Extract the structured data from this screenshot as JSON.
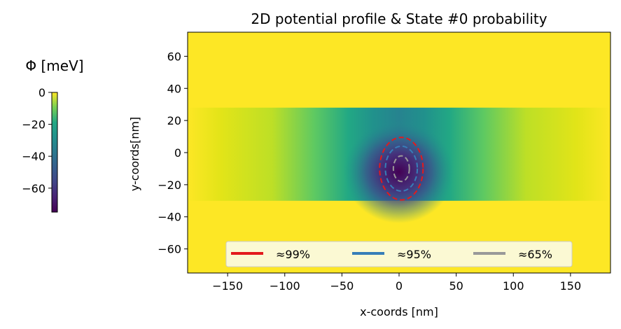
{
  "chart_data": {
    "type": "heatmap",
    "title": "2D potential profile & State #0 probability",
    "xlabel": "x-coords [nm]",
    "ylabel": "y-coords[nm]",
    "xlim": [
      -185,
      185
    ],
    "ylim": [
      -75,
      75
    ],
    "xticks": [
      -150,
      -100,
      -50,
      0,
      50,
      100,
      150
    ],
    "yticks": [
      -60,
      -40,
      -20,
      0,
      20,
      40,
      60
    ],
    "colormap": "viridis",
    "potential_region": {
      "x": [
        -185,
        185
      ],
      "y": [
        -30,
        28
      ]
    },
    "potential_min_location": {
      "x": 0,
      "y": -12
    },
    "colorbar": {
      "label": "Φ [meV]",
      "range": [
        -75,
        0
      ],
      "ticks": [
        0,
        -20,
        -40,
        -60
      ]
    },
    "contours": [
      {
        "label": "≈99%",
        "color": "#e31a1c",
        "center": [
          2,
          -10
        ],
        "rx": 19,
        "ry": 19.5
      },
      {
        "label": "≈95%",
        "color": "#377eb8",
        "center": [
          2,
          -10
        ],
        "rx": 14,
        "ry": 14
      },
      {
        "label": "≈65%",
        "color": "#999999",
        "center": [
          2,
          -10
        ],
        "rx": 7,
        "ry": 8
      }
    ],
    "legend": {
      "placement": "lower center",
      "columns": 3
    }
  }
}
